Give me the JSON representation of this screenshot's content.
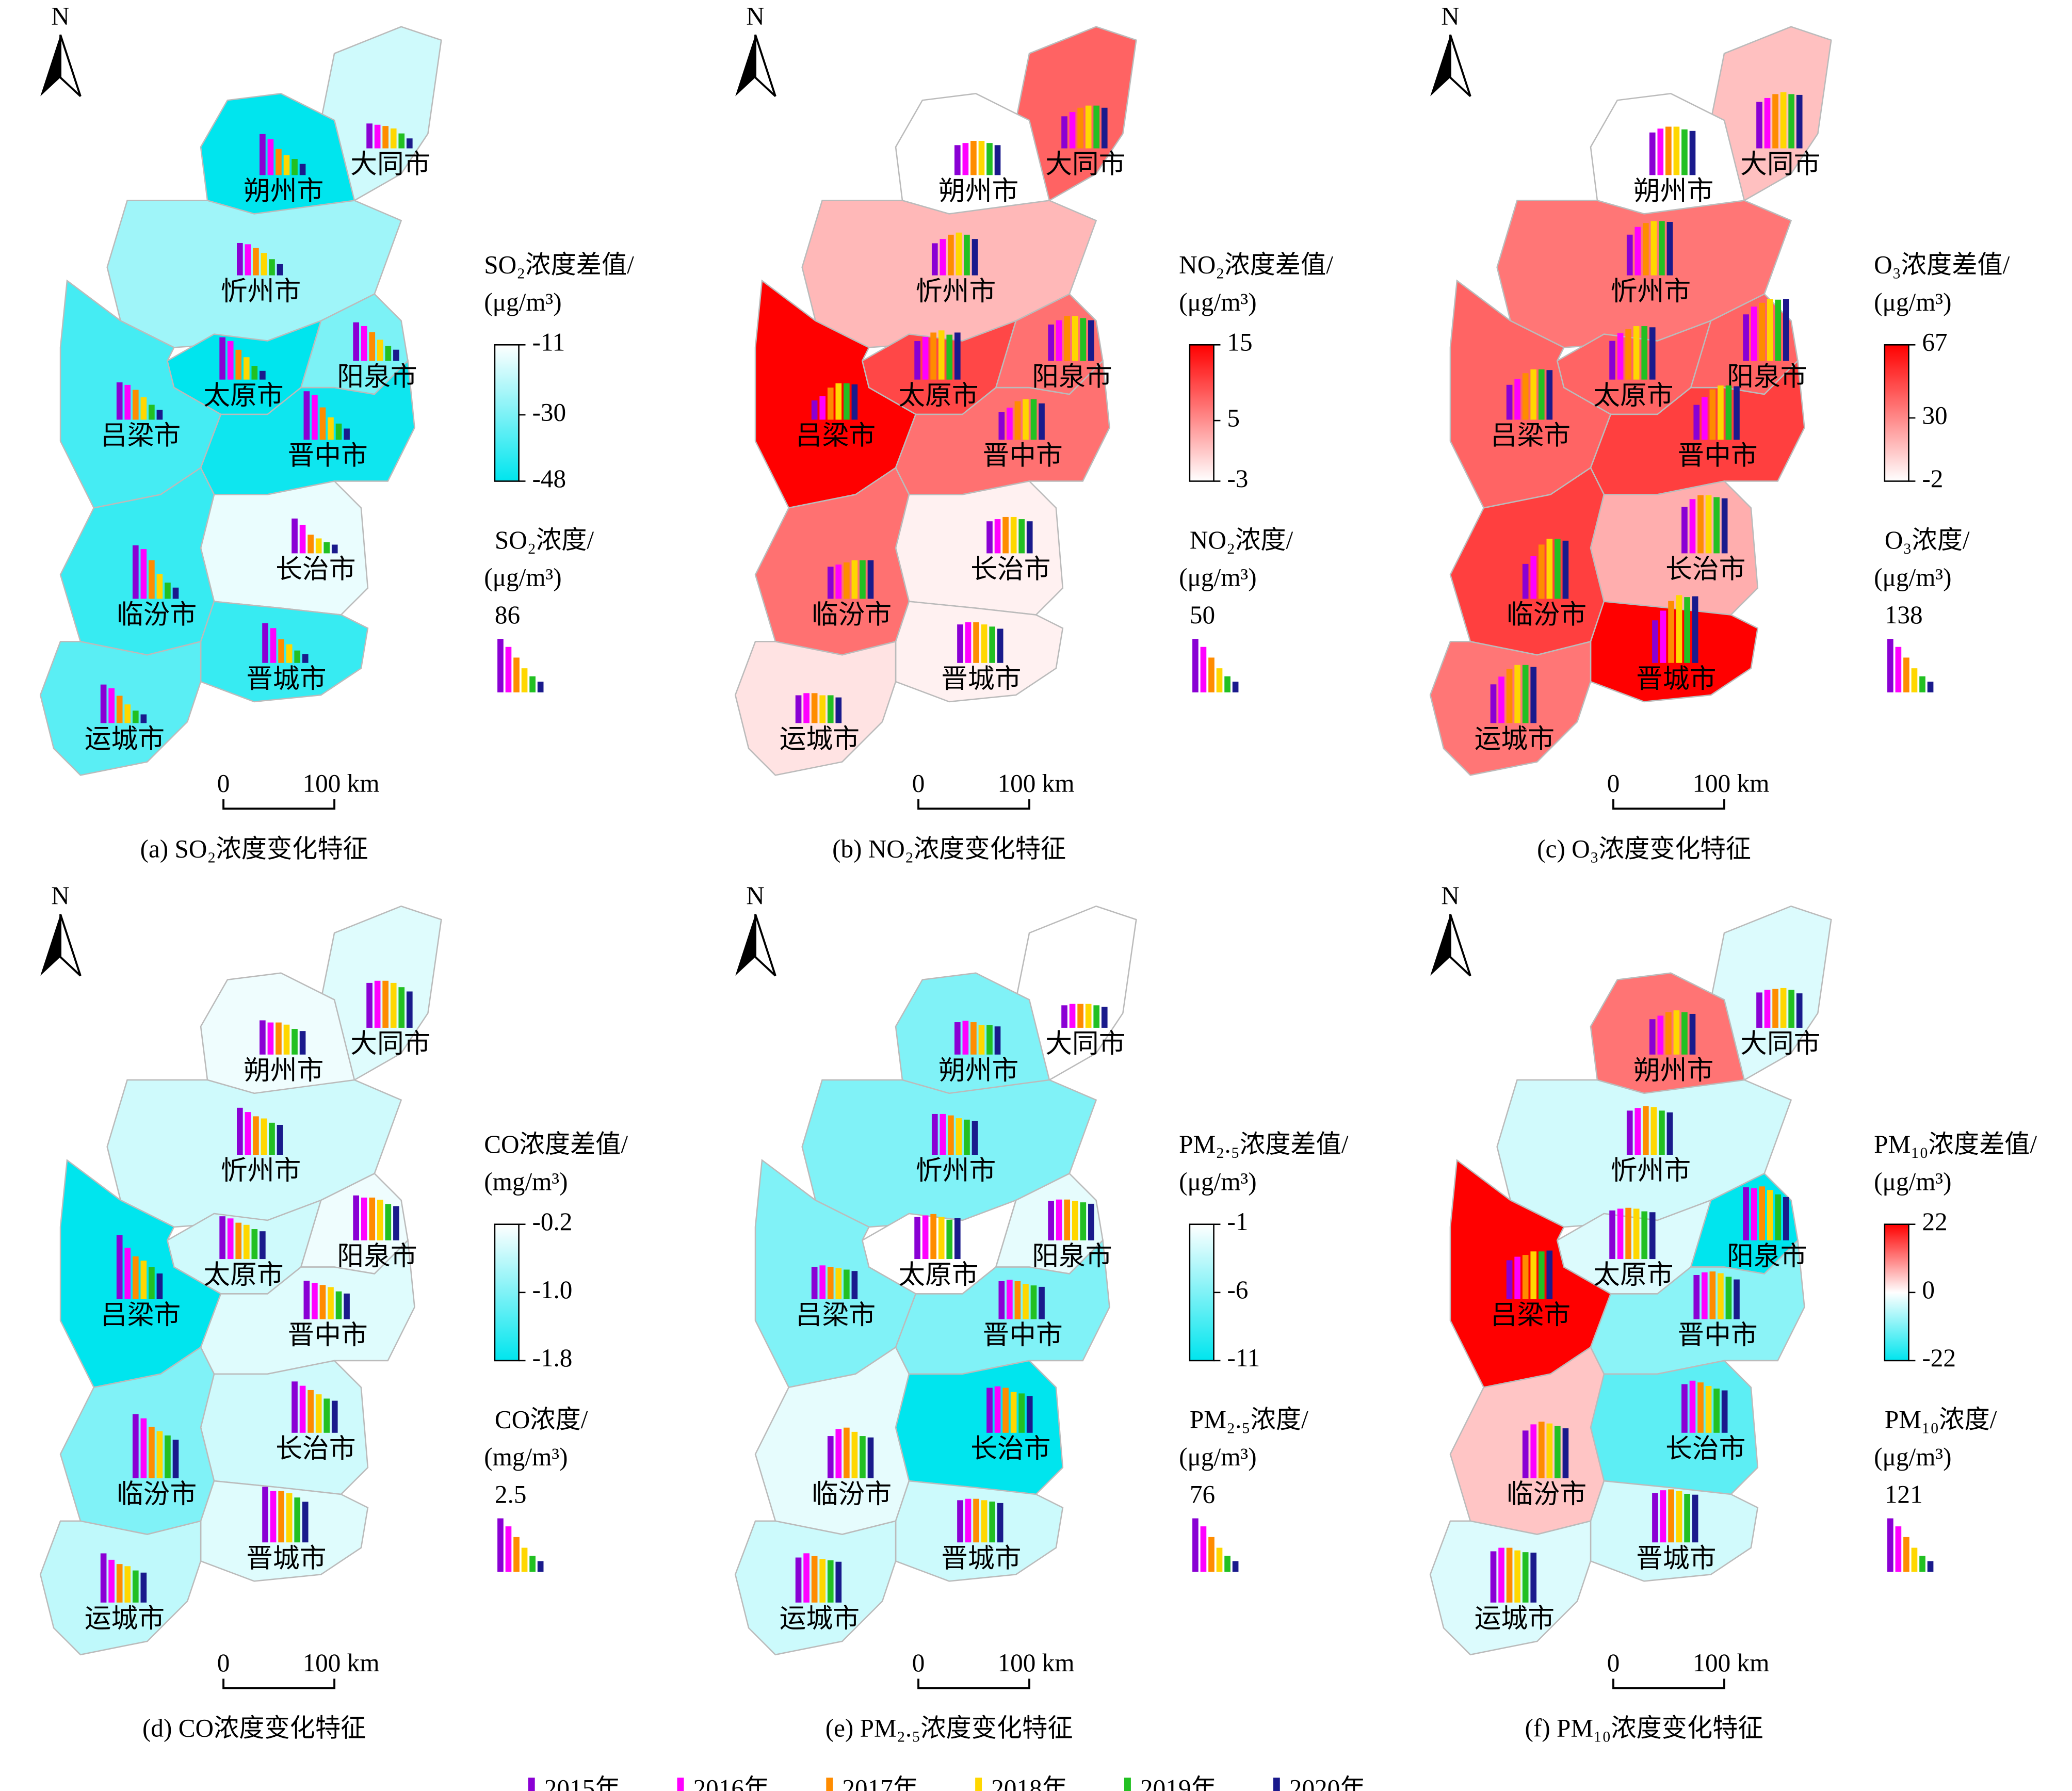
{
  "north": "N",
  "scale_labels": [
    "0",
    "100 km"
  ],
  "years": [
    "2015年",
    "2016年",
    "2017年",
    "2018年",
    "2019年",
    "2020年"
  ],
  "year_colors": [
    "#8a00d4",
    "#ff00ff",
    "#ff8c00",
    "#ffd700",
    "#22c022",
    "#1a1a8c"
  ],
  "cities": [
    "大同市",
    "朔州市",
    "忻州市",
    "太原市",
    "阳泉市",
    "吕梁市",
    "晋中市",
    "长治市",
    "临汾市",
    "晋城市",
    "运城市"
  ],
  "panels": [
    {
      "title": "(a) SO₂浓度变化特征",
      "diff_title": "SO₂浓度差值/",
      "diff_unit": "(μg/m³)",
      "diff_lim": [
        -48,
        -11
      ],
      "diff_ticks": [
        -11,
        -30,
        -48
      ],
      "cmap": [
        "#00e5ee",
        "#ffffff"
      ],
      "conc_title": "SO₂浓度/",
      "conc_unit": "(μg/m³)",
      "ref": 86,
      "diffs": [
        -18,
        -48,
        -25,
        -48,
        -30,
        -38,
        -46,
        -14,
        -40,
        -40,
        -35
      ],
      "values": [
        [
          40,
          38,
          36,
          32,
          24,
          16
        ],
        [
          66,
          58,
          42,
          32,
          26,
          18
        ],
        [
          52,
          50,
          44,
          36,
          26,
          18
        ],
        [
          68,
          62,
          48,
          36,
          22,
          14
        ],
        [
          62,
          56,
          46,
          34,
          24,
          18
        ],
        [
          60,
          56,
          48,
          36,
          24,
          16
        ],
        [
          78,
          72,
          52,
          36,
          26,
          18
        ],
        [
          56,
          46,
          30,
          24,
          18,
          14
        ],
        [
          86,
          80,
          62,
          40,
          26,
          18
        ],
        [
          64,
          56,
          38,
          30,
          20,
          14
        ],
        [
          62,
          56,
          44,
          30,
          20,
          14
        ]
      ]
    },
    {
      "title": "(b) NO₂浓度变化特征",
      "diff_title": "NO₂浓度差值/",
      "diff_unit": "(μg/m³)",
      "diff_lim": [
        -3,
        15
      ],
      "diff_ticks": [
        15,
        5,
        -3
      ],
      "cmap": [
        "#ffffff",
        "#ff0000"
      ],
      "conc_title": "NO₂浓度/",
      "conc_unit": "(μg/m³)",
      "ref": 50,
      "diffs": [
        8,
        -3,
        2,
        10,
        7,
        15,
        7,
        -2,
        7,
        -2,
        -1
      ],
      "values": [
        [
          30,
          34,
          38,
          40,
          40,
          38
        ],
        [
          28,
          30,
          32,
          32,
          30,
          28
        ],
        [
          30,
          34,
          38,
          40,
          38,
          34
        ],
        [
          36,
          40,
          44,
          46,
          42,
          44
        ],
        [
          34,
          38,
          42,
          42,
          40,
          38
        ],
        [
          18,
          22,
          30,
          34,
          34,
          33
        ],
        [
          26,
          30,
          36,
          38,
          38,
          34
        ],
        [
          30,
          32,
          34,
          34,
          32,
          30
        ],
        [
          30,
          32,
          34,
          36,
          36,
          36
        ],
        [
          36,
          38,
          38,
          36,
          34,
          32
        ],
        [
          26,
          28,
          28,
          26,
          26,
          24
        ]
      ]
    },
    {
      "title": "(c) O₃浓度变化特征",
      "diff_title": "O₃浓度差值/",
      "diff_unit": "(μg/m³)",
      "diff_lim": [
        -2,
        67
      ],
      "diff_ticks": [
        67,
        30,
        -2
      ],
      "cmap": [
        "#ffffff",
        "#ff0000"
      ],
      "conc_title": "O₃浓度/",
      "conc_unit": "(μg/m³)",
      "ref": 138,
      "diffs": [
        15,
        -2,
        35,
        40,
        40,
        40,
        50,
        20,
        50,
        67,
        35
      ],
      "values": [
        [
          120,
          130,
          140,
          145,
          140,
          138
        ],
        [
          110,
          120,
          125,
          125,
          118,
          114
        ],
        [
          105,
          125,
          135,
          140,
          140,
          138
        ],
        [
          100,
          120,
          130,
          138,
          138,
          135
        ],
        [
          120,
          140,
          150,
          160,
          158,
          160
        ],
        [
          90,
          105,
          120,
          130,
          130,
          128
        ],
        [
          90,
          110,
          130,
          140,
          140,
          138
        ],
        [
          120,
          140,
          150,
          150,
          145,
          142
        ],
        [
          90,
          110,
          140,
          155,
          155,
          150
        ],
        [
          110,
          135,
          160,
          175,
          170,
          172
        ],
        [
          100,
          120,
          140,
          150,
          150,
          145
        ]
      ]
    },
    {
      "title": "(d) CO浓度变化特征",
      "diff_title": "CO浓度差值/",
      "diff_unit": "(mg/m³)",
      "diff_lim": [
        -1.8,
        -0.2
      ],
      "diff_ticks": [
        -0.2,
        {
          "value": -1,
          "label": "-1.0"
        },
        -1.8
      ],
      "cmap": [
        "#00e5ee",
        "#ffffff"
      ],
      "conc_title": "CO浓度/",
      "conc_unit": "(mg/m³)",
      "ref": 2.5,
      "diffs": [
        -0.4,
        -0.3,
        -0.5,
        -0.5,
        -0.3,
        -1.8,
        -0.4,
        -0.5,
        -1.0,
        -0.4,
        -0.6
      ],
      "values": [
        [
          2.1,
          2.2,
          2.2,
          2.1,
          1.9,
          1.7
        ],
        [
          1.6,
          1.5,
          1.5,
          1.4,
          1.2,
          1.1
        ],
        [
          2.2,
          2.0,
          1.8,
          1.7,
          1.5,
          1.4
        ],
        [
          2.0,
          1.9,
          1.7,
          1.6,
          1.4,
          1.3
        ],
        [
          2.1,
          2.0,
          2.0,
          1.9,
          1.7,
          1.6
        ],
        [
          3.0,
          2.4,
          2.0,
          1.8,
          1.5,
          1.2
        ],
        [
          1.8,
          1.7,
          1.6,
          1.5,
          1.3,
          1.2
        ],
        [
          2.4,
          2.2,
          2.0,
          1.8,
          1.6,
          1.5
        ],
        [
          3.0,
          2.8,
          2.4,
          2.2,
          2.0,
          1.8
        ],
        [
          2.6,
          2.4,
          2.4,
          2.3,
          2.1,
          1.9
        ],
        [
          2.3,
          2.0,
          1.8,
          1.7,
          1.5,
          1.4
        ]
      ]
    },
    {
      "title": "(e) PM₂.₅浓度变化特征",
      "diff_title": "PM₂.₅浓度差值/",
      "diff_unit": "(μg/m³)",
      "diff_lim": [
        -11,
        -1
      ],
      "diff_ticks": [
        -1,
        -6,
        -11
      ],
      "cmap": [
        "#00e5ee",
        "#ffffff"
      ],
      "conc_title": "PM₂.₅浓度/",
      "conc_unit": "(μg/m³)",
      "ref": 76,
      "diffs": [
        -1,
        -6,
        -6,
        -1,
        -2,
        -6,
        -6,
        -11,
        -2,
        -3,
        -3
      ],
      "values": [
        [
          32,
          34,
          34,
          34,
          32,
          30
        ],
        [
          46,
          48,
          46,
          42,
          42,
          40
        ],
        [
          58,
          58,
          56,
          52,
          50,
          48
        ],
        [
          60,
          62,
          64,
          60,
          56,
          58
        ],
        [
          56,
          58,
          58,
          56,
          54,
          52
        ],
        [
          46,
          48,
          46,
          44,
          42,
          40
        ],
        [
          54,
          56,
          54,
          50,
          48,
          46
        ],
        [
          64,
          66,
          64,
          58,
          56,
          52
        ],
        [
          60,
          70,
          72,
          66,
          60,
          58
        ],
        [
          60,
          62,
          62,
          60,
          58,
          56
        ],
        [
          64,
          70,
          66,
          62,
          60,
          58
        ]
      ]
    },
    {
      "title": "(f) PM₁₀浓度变化特征",
      "diff_title": "PM₁₀浓度差值/",
      "diff_unit": "(μg/m³)",
      "diff_lim": [
        -22,
        22
      ],
      "diff_ticks": [
        22,
        0,
        -22
      ],
      "cmap": [
        "#00e5ee",
        "#ffffff",
        "#ff0000"
      ],
      "conc_title": "PM₁₀浓度/",
      "conc_unit": "(μg/m³)",
      "ref": 121,
      "diffs": [
        -3,
        12,
        -4,
        -3,
        -22,
        22,
        -10,
        -14,
        5,
        -4,
        -3
      ],
      "values": [
        [
          80,
          86,
          88,
          90,
          86,
          78
        ],
        [
          80,
          88,
          96,
          100,
          96,
          92
        ],
        [
          100,
          106,
          110,
          108,
          100,
          96
        ],
        [
          110,
          114,
          116,
          114,
          108,
          106
        ],
        [
          120,
          118,
          122,
          114,
          104,
          98
        ],
        [
          88,
          96,
          100,
          108,
          108,
          110
        ],
        [
          100,
          106,
          108,
          104,
          96,
          90
        ],
        [
          110,
          118,
          114,
          106,
          100,
          96
        ],
        [
          108,
          122,
          128,
          124,
          118,
          113
        ],
        [
          112,
          118,
          120,
          116,
          110,
          108
        ],
        [
          116,
          124,
          124,
          118,
          114,
          113
        ]
      ]
    }
  ]
}
